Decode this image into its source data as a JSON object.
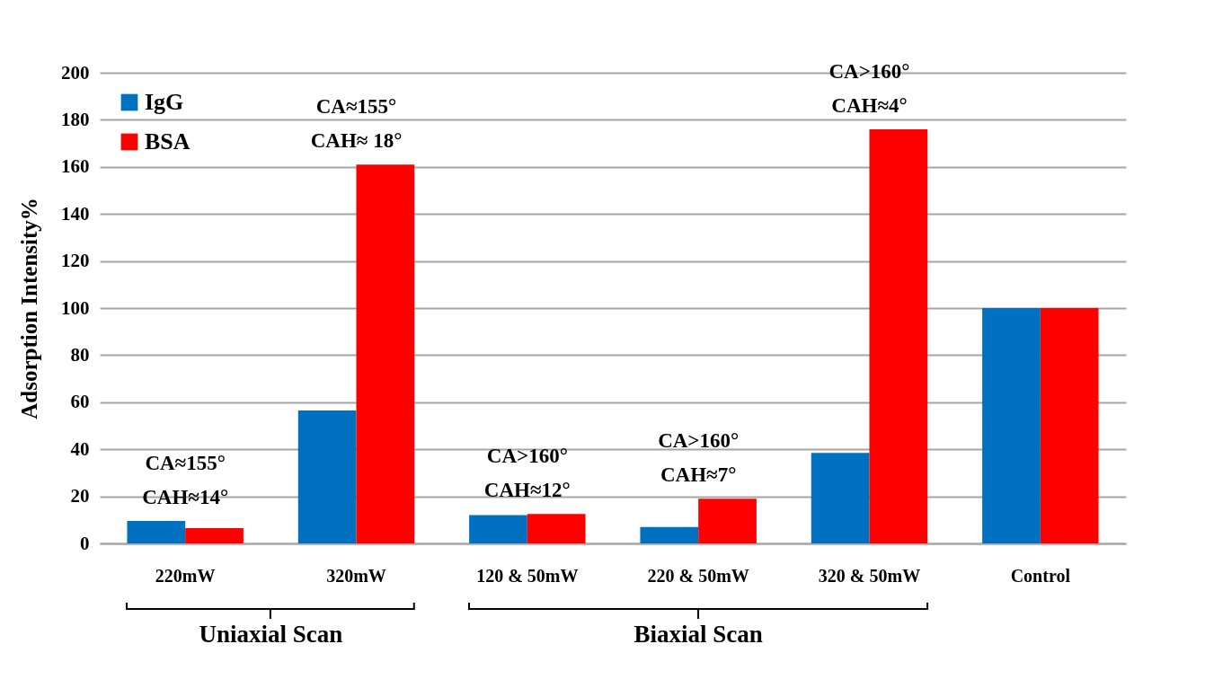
{
  "chart_data": {
    "type": "bar",
    "ylabel": "Adsorption Intensity%",
    "categories": [
      "220mW",
      "320mW",
      "120 & 50mW",
      "220 & 50mW",
      "320 & 50mW",
      "Control"
    ],
    "series": [
      {
        "name": "IgG",
        "color": "#0070c0",
        "values": [
          9.5,
          56.5,
          12,
          7,
          38.5,
          100
        ]
      },
      {
        "name": "BSA",
        "color": "#ff0000",
        "values": [
          6.5,
          161,
          12.5,
          19,
          176,
          100
        ]
      }
    ],
    "ylim": [
      0,
      200
    ],
    "yticks": [
      0,
      20,
      40,
      60,
      80,
      100,
      120,
      140,
      160,
      180,
      200
    ],
    "grid": "y",
    "legend": "top left",
    "annotations": [
      "CA≈155°",
      "CAH≈14°",
      "CA≈155°",
      "CAH≈ 18°",
      "CA>160°",
      "CAH≈12°",
      "CA>160°",
      "CAH≈7°",
      "CA>160°",
      "CAH≈4°",
      "Uniaxial Scan",
      "Biaxial Scan"
    ]
  }
}
